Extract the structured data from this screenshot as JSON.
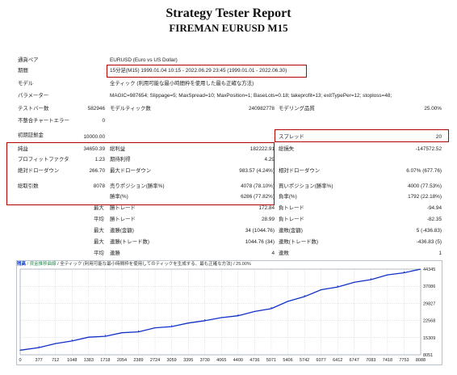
{
  "header": {
    "title": "Strategy Tester Report",
    "subtitle": "FIREMAN EURUSD M15"
  },
  "rows": {
    "symbol": {
      "label": "通貨ペア",
      "value": "EURUSD (Euro vs US Dollar)"
    },
    "period": {
      "label": "期間",
      "value": "15分足(M15) 1999.01.04 10:15 - 2022.06.29 23:45 (1999.01.01 - 2022.06.30)"
    },
    "model": {
      "label": "モデル",
      "value": "全ティック (利用可能な最小時間枠を使用した最も正確な方法)"
    },
    "params": {
      "label": "パラメーター",
      "value": "MAGIC=987654; Slippage=5; MaxSpread=10; MaxPosition=1; BaseLots=0.18; takeprofit=13; exitTypePer=12; stoploss=48;"
    },
    "bars": {
      "label": "テストバー数",
      "value": "582946",
      "label2": "モデルティック数",
      "value2": "240982778",
      "label3": "モデリング品質",
      "value3": "25.00%"
    },
    "mismatch": {
      "label": "不整合チャートエラー",
      "value": "0"
    },
    "deposit": {
      "label": "初期証拠金",
      "value": "10000.00",
      "label2": "スプレッド",
      "value2": "20"
    },
    "net": {
      "label": "純益",
      "value": "34650.39",
      "label2": "総利益",
      "value2": "182222.91",
      "label3": "総損失",
      "value3": "-147572.52"
    },
    "pf": {
      "label": "プロフィットファクタ",
      "value": "1.23",
      "label2": "期待利得",
      "value2": "4.29"
    },
    "dd": {
      "label": "絶対ドローダウン",
      "value": "266.70",
      "label2": "最大ドローダウン",
      "value2": "983.57 (4.24%)",
      "label3": "相対ドローダウン",
      "value3": "6.07% (677.76)"
    },
    "trades": {
      "label": "総取引数",
      "value": "8078",
      "label2": "売りポジション(勝率%)",
      "value2": "4078 (78.10%)",
      "label3": "買いポジション(勝率%)",
      "value3": "4000 (77.53%)"
    },
    "winrate": {
      "label2": "勝率(%)",
      "value2": "6286 (77.82%)",
      "label3": "負率(%)",
      "value3": "1792 (22.18%)"
    },
    "largest": {
      "label": "最大",
      "label2": "勝トレード",
      "value2": "172.84",
      "label3": "負トレード",
      "value3": "-94.94"
    },
    "average": {
      "label": "平均",
      "label2": "勝トレード",
      "value2": "28.99",
      "label3": "負トレード",
      "value3": "-82.35"
    },
    "maxcons": {
      "label": "最大",
      "label2": "連勝(金額)",
      "value2": "34 (1044.76)",
      "label3": "連敗(金額)",
      "value3": "5 (-436.83)"
    },
    "maxprofit": {
      "label": "最大",
      "label2": "連勝(トレード数)",
      "value2": "1044.76 (34)",
      "label3": "連敗(トレード数)",
      "value3": "-436.83 (5)"
    },
    "avgcons": {
      "label": "平均",
      "label2": "連勝",
      "value2": "4",
      "label3": "連敗",
      "value3": "1"
    }
  },
  "chart_header": {
    "part1": "残高",
    "part2": "/ 資金推移曲線",
    "part3": "/ 全ティック (利用可能な最小時間枠を使用してのティックを生成する、最も正確な方法)",
    "part4": "/ 25.00%"
  },
  "colors": {
    "accent_red": "#b00000",
    "line": "#1030c8",
    "grid": "#c4ccd6"
  },
  "chart_data": {
    "type": "line",
    "x_ticks": [
      "0",
      "377",
      "712",
      "1048",
      "1383",
      "1718",
      "2054",
      "2389",
      "2724",
      "3059",
      "3395",
      "3730",
      "4065",
      "4400",
      "4736",
      "5071",
      "5406",
      "5742",
      "6077",
      "6412",
      "6747",
      "7083",
      "7418",
      "7753",
      "8088"
    ],
    "y_ticks": [
      "44345",
      "37086",
      "29827",
      "22568",
      "15309",
      "8051"
    ],
    "ylim": [
      8051,
      44345
    ],
    "xlim": [
      0,
      8088
    ],
    "series": [
      {
        "x": [
          0,
          377,
          712,
          1048,
          1383,
          1718,
          2054,
          2389,
          2724,
          3059,
          3395,
          3730,
          4065,
          4400,
          4736,
          5071,
          5406,
          5742,
          6077,
          6412,
          6747,
          7083,
          7418,
          7753,
          8078
        ],
        "y": [
          10000,
          11500,
          12800,
          14300,
          15500,
          16300,
          17400,
          18200,
          19500,
          20400,
          21500,
          22900,
          23800,
          25000,
          26400,
          28000,
          30700,
          33100,
          35600,
          37200,
          38800,
          40300,
          41900,
          43200,
          44300
        ]
      }
    ]
  }
}
